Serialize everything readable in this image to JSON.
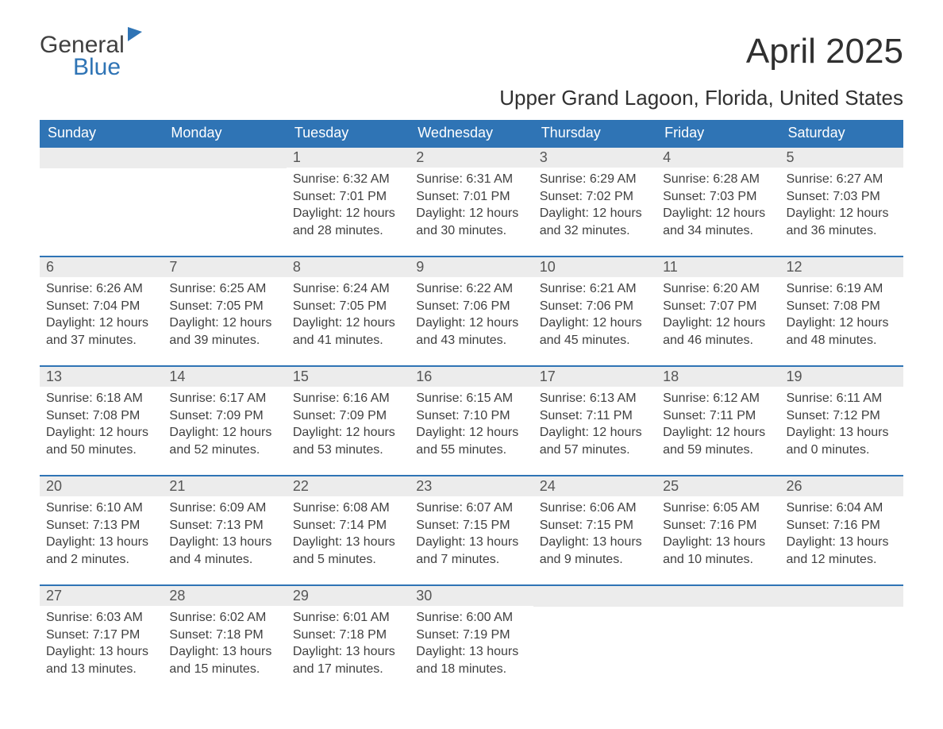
{
  "logo": {
    "line1": "General",
    "line2": "Blue"
  },
  "title": "April 2025",
  "location": "Upper Grand Lagoon, Florida, United States",
  "colors": {
    "header_bg": "#2f74b5",
    "header_text": "#ffffff",
    "daynum_bg": "#ececec",
    "text": "#404040",
    "border": "#2f74b5",
    "page_bg": "#ffffff"
  },
  "typography": {
    "title_fontsize": 44,
    "location_fontsize": 26,
    "header_fontsize": 18,
    "daynum_fontsize": 18,
    "body_fontsize": 16
  },
  "calendar": {
    "columns": [
      "Sunday",
      "Monday",
      "Tuesday",
      "Wednesday",
      "Thursday",
      "Friday",
      "Saturday"
    ],
    "weeks": [
      [
        null,
        null,
        {
          "n": "1",
          "sr": "Sunrise: 6:32 AM",
          "ss": "Sunset: 7:01 PM",
          "d1": "Daylight: 12 hours",
          "d2": "and 28 minutes."
        },
        {
          "n": "2",
          "sr": "Sunrise: 6:31 AM",
          "ss": "Sunset: 7:01 PM",
          "d1": "Daylight: 12 hours",
          "d2": "and 30 minutes."
        },
        {
          "n": "3",
          "sr": "Sunrise: 6:29 AM",
          "ss": "Sunset: 7:02 PM",
          "d1": "Daylight: 12 hours",
          "d2": "and 32 minutes."
        },
        {
          "n": "4",
          "sr": "Sunrise: 6:28 AM",
          "ss": "Sunset: 7:03 PM",
          "d1": "Daylight: 12 hours",
          "d2": "and 34 minutes."
        },
        {
          "n": "5",
          "sr": "Sunrise: 6:27 AM",
          "ss": "Sunset: 7:03 PM",
          "d1": "Daylight: 12 hours",
          "d2": "and 36 minutes."
        }
      ],
      [
        {
          "n": "6",
          "sr": "Sunrise: 6:26 AM",
          "ss": "Sunset: 7:04 PM",
          "d1": "Daylight: 12 hours",
          "d2": "and 37 minutes."
        },
        {
          "n": "7",
          "sr": "Sunrise: 6:25 AM",
          "ss": "Sunset: 7:05 PM",
          "d1": "Daylight: 12 hours",
          "d2": "and 39 minutes."
        },
        {
          "n": "8",
          "sr": "Sunrise: 6:24 AM",
          "ss": "Sunset: 7:05 PM",
          "d1": "Daylight: 12 hours",
          "d2": "and 41 minutes."
        },
        {
          "n": "9",
          "sr": "Sunrise: 6:22 AM",
          "ss": "Sunset: 7:06 PM",
          "d1": "Daylight: 12 hours",
          "d2": "and 43 minutes."
        },
        {
          "n": "10",
          "sr": "Sunrise: 6:21 AM",
          "ss": "Sunset: 7:06 PM",
          "d1": "Daylight: 12 hours",
          "d2": "and 45 minutes."
        },
        {
          "n": "11",
          "sr": "Sunrise: 6:20 AM",
          "ss": "Sunset: 7:07 PM",
          "d1": "Daylight: 12 hours",
          "d2": "and 46 minutes."
        },
        {
          "n": "12",
          "sr": "Sunrise: 6:19 AM",
          "ss": "Sunset: 7:08 PM",
          "d1": "Daylight: 12 hours",
          "d2": "and 48 minutes."
        }
      ],
      [
        {
          "n": "13",
          "sr": "Sunrise: 6:18 AM",
          "ss": "Sunset: 7:08 PM",
          "d1": "Daylight: 12 hours",
          "d2": "and 50 minutes."
        },
        {
          "n": "14",
          "sr": "Sunrise: 6:17 AM",
          "ss": "Sunset: 7:09 PM",
          "d1": "Daylight: 12 hours",
          "d2": "and 52 minutes."
        },
        {
          "n": "15",
          "sr": "Sunrise: 6:16 AM",
          "ss": "Sunset: 7:09 PM",
          "d1": "Daylight: 12 hours",
          "d2": "and 53 minutes."
        },
        {
          "n": "16",
          "sr": "Sunrise: 6:15 AM",
          "ss": "Sunset: 7:10 PM",
          "d1": "Daylight: 12 hours",
          "d2": "and 55 minutes."
        },
        {
          "n": "17",
          "sr": "Sunrise: 6:13 AM",
          "ss": "Sunset: 7:11 PM",
          "d1": "Daylight: 12 hours",
          "d2": "and 57 minutes."
        },
        {
          "n": "18",
          "sr": "Sunrise: 6:12 AM",
          "ss": "Sunset: 7:11 PM",
          "d1": "Daylight: 12 hours",
          "d2": "and 59 minutes."
        },
        {
          "n": "19",
          "sr": "Sunrise: 6:11 AM",
          "ss": "Sunset: 7:12 PM",
          "d1": "Daylight: 13 hours",
          "d2": "and 0 minutes."
        }
      ],
      [
        {
          "n": "20",
          "sr": "Sunrise: 6:10 AM",
          "ss": "Sunset: 7:13 PM",
          "d1": "Daylight: 13 hours",
          "d2": "and 2 minutes."
        },
        {
          "n": "21",
          "sr": "Sunrise: 6:09 AM",
          "ss": "Sunset: 7:13 PM",
          "d1": "Daylight: 13 hours",
          "d2": "and 4 minutes."
        },
        {
          "n": "22",
          "sr": "Sunrise: 6:08 AM",
          "ss": "Sunset: 7:14 PM",
          "d1": "Daylight: 13 hours",
          "d2": "and 5 minutes."
        },
        {
          "n": "23",
          "sr": "Sunrise: 6:07 AM",
          "ss": "Sunset: 7:15 PM",
          "d1": "Daylight: 13 hours",
          "d2": "and 7 minutes."
        },
        {
          "n": "24",
          "sr": "Sunrise: 6:06 AM",
          "ss": "Sunset: 7:15 PM",
          "d1": "Daylight: 13 hours",
          "d2": "and 9 minutes."
        },
        {
          "n": "25",
          "sr": "Sunrise: 6:05 AM",
          "ss": "Sunset: 7:16 PM",
          "d1": "Daylight: 13 hours",
          "d2": "and 10 minutes."
        },
        {
          "n": "26",
          "sr": "Sunrise: 6:04 AM",
          "ss": "Sunset: 7:16 PM",
          "d1": "Daylight: 13 hours",
          "d2": "and 12 minutes."
        }
      ],
      [
        {
          "n": "27",
          "sr": "Sunrise: 6:03 AM",
          "ss": "Sunset: 7:17 PM",
          "d1": "Daylight: 13 hours",
          "d2": "and 13 minutes."
        },
        {
          "n": "28",
          "sr": "Sunrise: 6:02 AM",
          "ss": "Sunset: 7:18 PM",
          "d1": "Daylight: 13 hours",
          "d2": "and 15 minutes."
        },
        {
          "n": "29",
          "sr": "Sunrise: 6:01 AM",
          "ss": "Sunset: 7:18 PM",
          "d1": "Daylight: 13 hours",
          "d2": "and 17 minutes."
        },
        {
          "n": "30",
          "sr": "Sunrise: 6:00 AM",
          "ss": "Sunset: 7:19 PM",
          "d1": "Daylight: 13 hours",
          "d2": "and 18 minutes."
        },
        null,
        null,
        null
      ]
    ]
  }
}
